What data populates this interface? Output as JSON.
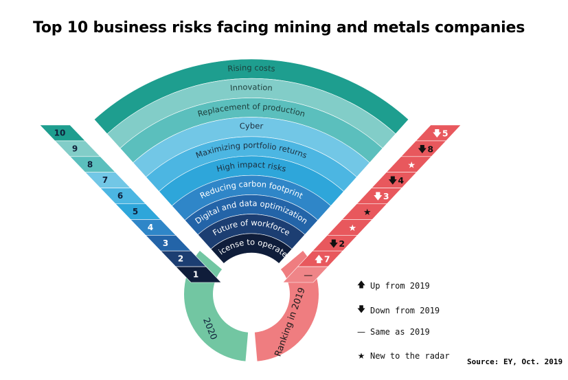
{
  "title": "Top 10 business risks facing mining and metals companies",
  "source": "Source: EY, Oct. 2019",
  "risks": [
    {
      "label": "Rising costs",
      "color": "#1e9e8f",
      "text_color": "#1c3d3a"
    },
    {
      "label": "Innovation",
      "color": "#82cdc8",
      "text_color": "#1c3d3a"
    },
    {
      "label": "Replacement of production",
      "color": "#5bbfbd",
      "text_color": "#1c3d3a"
    },
    {
      "label": "Cyber",
      "color": "#72c7e6",
      "text_color": "#1c2e3d"
    },
    {
      "label": "Maximizing portfolio returns",
      "color": "#4cb6e2",
      "text_color": "#1c2e3d"
    },
    {
      "label": "High impact risks",
      "color": "#2ea6da",
      "text_color": "#1c2e3d"
    },
    {
      "label": "Reducing carbon footprint",
      "color": "#2f86c8",
      "text_color": "#ffffff"
    },
    {
      "label": "Digital and data optimization",
      "color": "#2364a8",
      "text_color": "#ffffff"
    },
    {
      "label": "Future of workforce",
      "color": "#1c3e72",
      "text_color": "#ffffff"
    },
    {
      "label": "License to operate",
      "color": "#0f1d3a",
      "text_color": "#ffffff"
    }
  ],
  "ranks_2020": [
    "10",
    "9",
    "8",
    "7",
    "6",
    "5",
    "4",
    "3",
    "2",
    "1"
  ],
  "rank_2020_colors": [
    "#1e9e8f",
    "#82cdc8",
    "#5bbfbd",
    "#72c7e6",
    "#4cb6e2",
    "#2ea6da",
    "#2f86c8",
    "#2364a8",
    "#1c3e72",
    "#0f1d3a"
  ],
  "ranks_2019": [
    {
      "symbol": "down",
      "value": "5"
    },
    {
      "symbol": "down",
      "value": "8"
    },
    {
      "symbol": "star",
      "value": ""
    },
    {
      "symbol": "down",
      "value": "4"
    },
    {
      "symbol": "down",
      "value": "3"
    },
    {
      "symbol": "star",
      "value": ""
    },
    {
      "symbol": "star",
      "value": ""
    },
    {
      "symbol": "down",
      "value": "2"
    },
    {
      "symbol": "up",
      "value": "7"
    },
    {
      "symbol": "same",
      "value": ""
    }
  ],
  "arc_left_label": "2020",
  "arc_right_label": "Ranking in 2019",
  "colors": {
    "green_arc": "#72c6a2",
    "pink_arc": "#ef7d80",
    "red_band": "#e8585d",
    "red_band_light": "#ef8588"
  },
  "legend": [
    {
      "symbol": "up",
      "label": "Up from 2019"
    },
    {
      "symbol": "down",
      "label": "Down from 2019"
    },
    {
      "symbol": "same",
      "label": "Same as 2019"
    },
    {
      "symbol": "star",
      "label": "New to the radar"
    }
  ]
}
